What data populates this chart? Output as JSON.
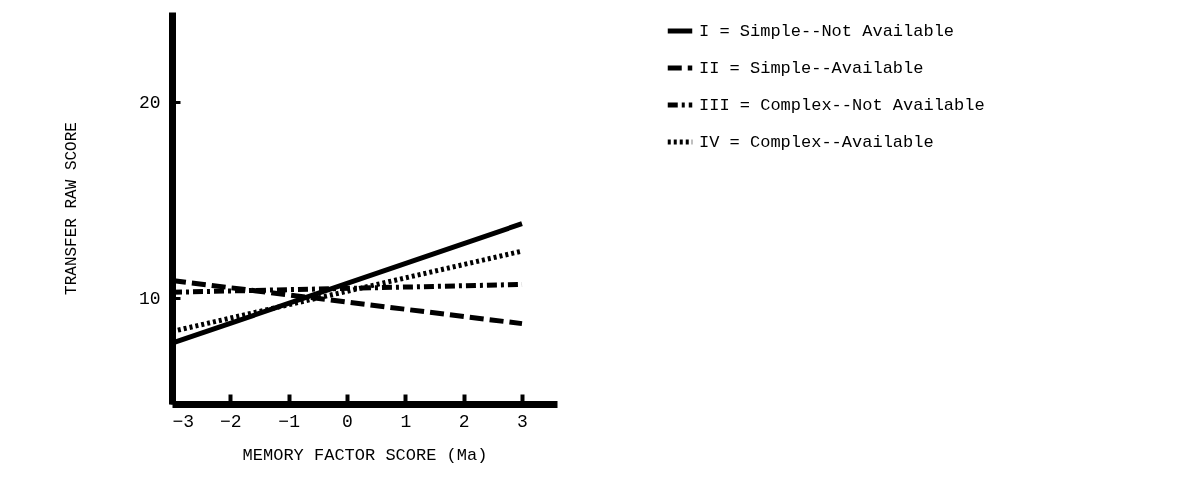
{
  "chart_data": {
    "type": "line",
    "xlabel": "MEMORY FACTOR SCORE (Ma)",
    "ylabel": "TRANSFER RAW SCORE",
    "x": [
      -3,
      3
    ],
    "xlim": [
      -3,
      3.6
    ],
    "xticks": [
      -3,
      -2,
      -1,
      0,
      1,
      2,
      3
    ],
    "ylim": [
      4.6,
      24.6
    ],
    "yticks": [
      10,
      20
    ],
    "legend": "top right",
    "grid": false,
    "series": [
      {
        "name": "I = Simple--Not Available",
        "color": "#000000",
        "line_style": "solid",
        "values": [
          7.7,
          13.8
        ]
      },
      {
        "name": "II = Simple--Available",
        "color": "#000000",
        "line_style": "dashed",
        "values": [
          10.9,
          8.7
        ]
      },
      {
        "name": "III = Complex--Not Available",
        "color": "#000000",
        "line_style": "dashdot",
        "values": [
          10.3,
          10.7
        ]
      },
      {
        "name": "IV = Complex--Available",
        "color": "#000000",
        "line_style": "dotted",
        "values": [
          8.3,
          12.4
        ]
      }
    ]
  }
}
